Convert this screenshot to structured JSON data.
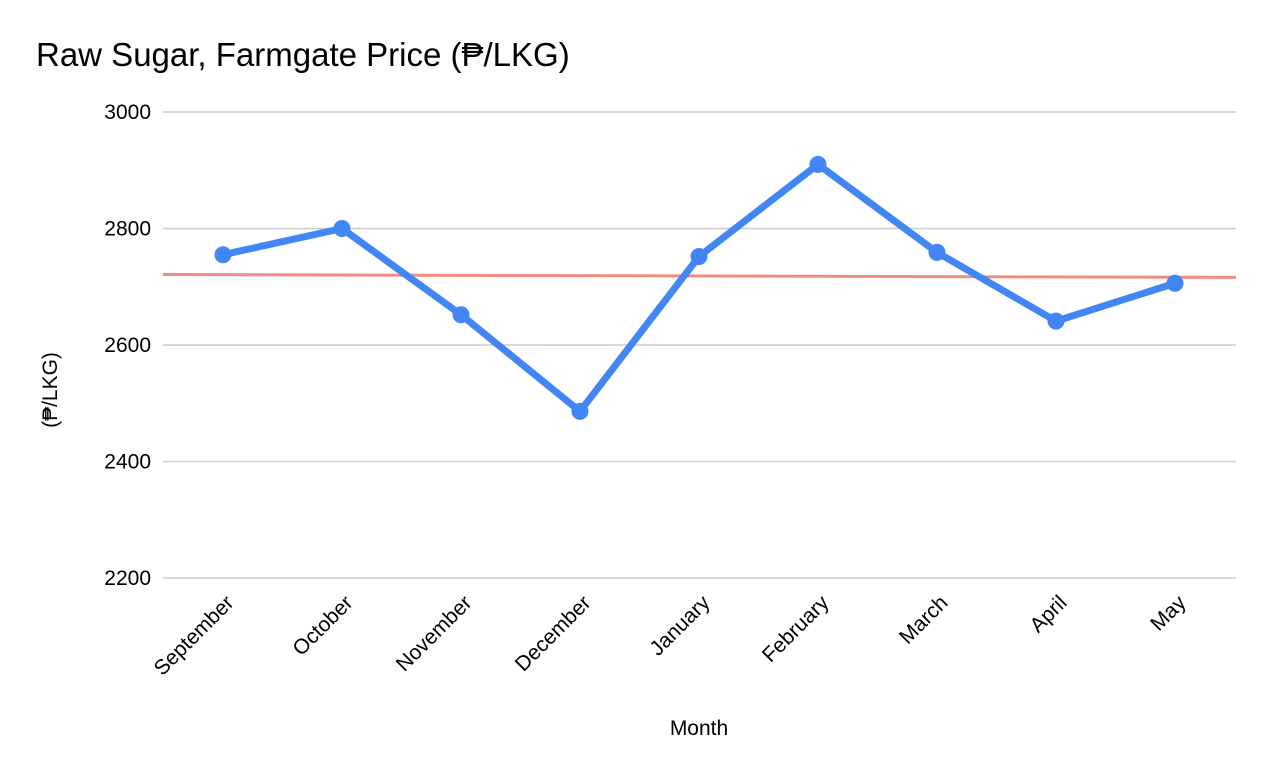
{
  "chart_data": {
    "type": "line",
    "title": "Raw Sugar, Farmgate Price (₱/LKG)",
    "xlabel": "Month",
    "ylabel": "(₱/LKG)",
    "categories": [
      "September",
      "October",
      "November",
      "December",
      "January",
      "February",
      "March",
      "April",
      "May"
    ],
    "series": [
      {
        "values": [
          2755,
          2800,
          2652,
          2486,
          2752,
          2910,
          2759,
          2641,
          2706
        ],
        "color": "#4285f4"
      }
    ],
    "trendline": {
      "start": 2721,
      "end": 2716,
      "color": "#f28b82"
    },
    "ylim": [
      2200,
      3000
    ],
    "yticks": [
      2200,
      2400,
      2600,
      2800,
      3000
    ],
    "grid": true,
    "legend": "none"
  }
}
